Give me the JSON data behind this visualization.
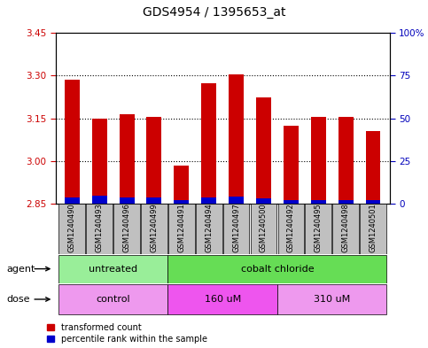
{
  "title": "GDS4954 / 1395653_at",
  "samples": [
    "GSM1240490",
    "GSM1240493",
    "GSM1240496",
    "GSM1240499",
    "GSM1240491",
    "GSM1240494",
    "GSM1240497",
    "GSM1240500",
    "GSM1240492",
    "GSM1240495",
    "GSM1240498",
    "GSM1240501"
  ],
  "red_values": [
    3.285,
    3.15,
    3.165,
    3.155,
    2.985,
    3.275,
    3.305,
    3.225,
    3.125,
    3.155,
    3.155,
    3.105
  ],
  "blue_values": [
    2.87,
    2.878,
    2.873,
    2.873,
    2.862,
    2.87,
    2.875,
    2.868,
    2.862,
    2.862,
    2.862,
    2.862
  ],
  "base": 2.85,
  "ylim_left": [
    2.85,
    3.45
  ],
  "yticks_left": [
    2.85,
    3.0,
    3.15,
    3.3,
    3.45
  ],
  "yticks_right": [
    0,
    25,
    50,
    75,
    100
  ],
  "grid_lines": [
    3.0,
    3.15,
    3.3
  ],
  "agent_groups": [
    {
      "label": "untreated",
      "start": 0,
      "end": 4,
      "color": "#99EE99"
    },
    {
      "label": "cobalt chloride",
      "start": 4,
      "end": 12,
      "color": "#66DD55"
    }
  ],
  "dose_groups": [
    {
      "label": "control",
      "start": 0,
      "end": 4,
      "color": "#EE99EE"
    },
    {
      "label": "160 uM",
      "start": 4,
      "end": 8,
      "color": "#EE55EE"
    },
    {
      "label": "310 uM",
      "start": 8,
      "end": 12,
      "color": "#EE99EE"
    }
  ],
  "bar_color_red": "#CC0000",
  "bar_color_blue": "#0000CC",
  "bar_width": 0.55,
  "tick_label_bg": "#C0C0C0",
  "legend_labels": [
    "transformed count",
    "percentile rank within the sample"
  ],
  "legend_colors": [
    "#CC0000",
    "#0000CC"
  ],
  "left_tick_color": "#CC0000",
  "right_tick_color": "#0000BB",
  "title_fontsize": 10,
  "tick_fontsize": 7.5,
  "label_fontsize": 8
}
